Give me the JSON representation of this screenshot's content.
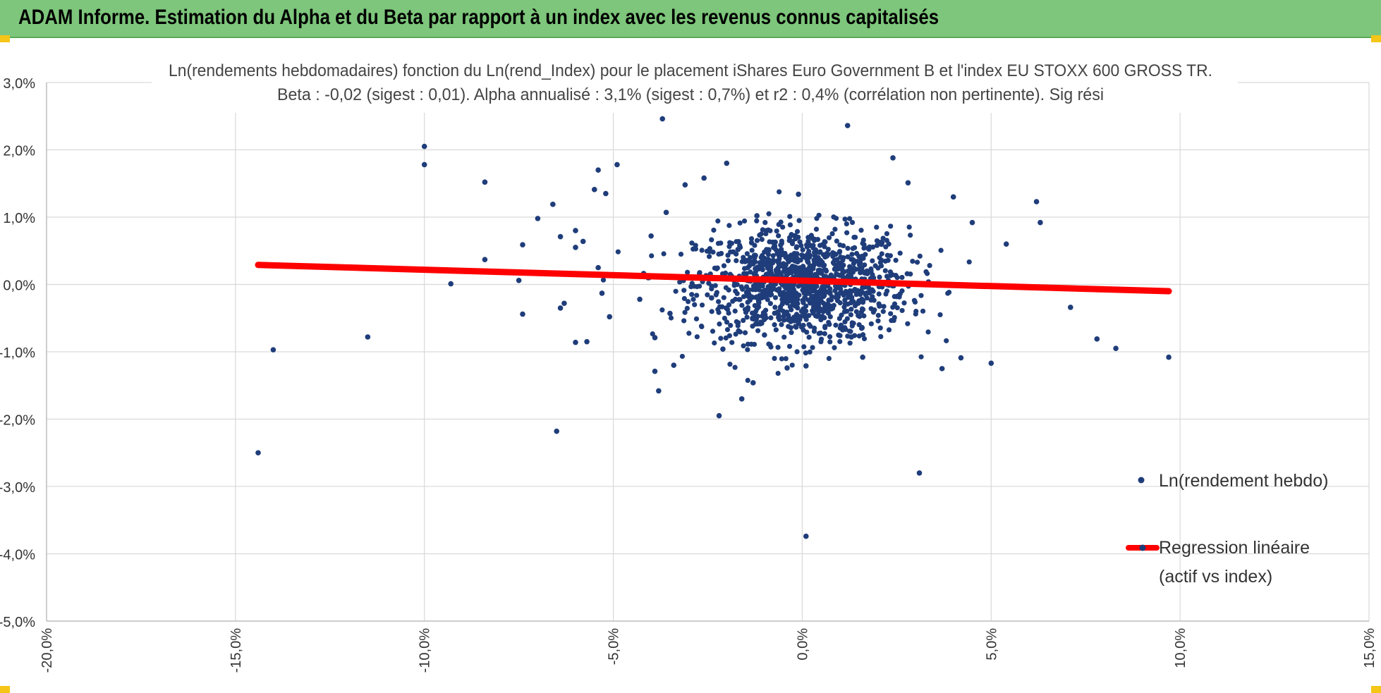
{
  "header": {
    "title": "ADAM Informe. Estimation du Alpha et du Beta par rapport à un index avec les revenus connus capitalisés"
  },
  "colors": {
    "header_bg": "#7dc67b",
    "points": "#1f3d7a",
    "regression": "#ff0000",
    "grid": "#d9d9d9",
    "corner_accent": "#f5c518"
  },
  "chart_data": {
    "type": "scatter",
    "title_line1": "Ln(rendements hebdomadaires) fonction du Ln(rend_Index) pour le placement iShares Euro Government B et l'index EU STOXX 600 GROSS TR.",
    "title_line2": "Beta : -0,02 (sigest : 0,01).  Alpha annualisé : 3,1% (sigest : 0,7%) et r2 : 0,4% (corrélation non pertinente). Sig rési",
    "xlim": [
      -0.2,
      0.15
    ],
    "ylim": [
      -0.05,
      0.03
    ],
    "x_ticks": [
      "-20,0%",
      "-15,0%",
      "-10,0%",
      "-5,0%",
      "0,0%",
      "5,0%",
      "10,0%",
      "15,0%"
    ],
    "y_ticks": [
      "3,0%",
      "2,0%",
      "1,0%",
      "0,0%",
      "-1,0%",
      "-2,0%",
      "-3,0%",
      "-4,0%",
      "-5,0%"
    ],
    "grid": true,
    "legend_position": "right",
    "series": [
      {
        "name": "Ln(rendement hebdo)",
        "kind": "scatter",
        "points": [
          [
            -0.144,
            -0.025
          ],
          [
            -0.14,
            -0.0097
          ],
          [
            -0.115,
            -0.0078
          ],
          [
            -0.1,
            0.0205
          ],
          [
            -0.1,
            0.0178
          ],
          [
            -0.093,
            0.0001
          ],
          [
            -0.084,
            0.0037
          ],
          [
            -0.084,
            0.0152
          ],
          [
            -0.075,
            0.0006
          ],
          [
            -0.074,
            0.0059
          ],
          [
            -0.074,
            -0.0044
          ],
          [
            -0.07,
            0.0098
          ],
          [
            -0.066,
            0.0119
          ],
          [
            -0.065,
            -0.0218
          ],
          [
            -0.064,
            0.0071
          ],
          [
            -0.064,
            -0.0035
          ],
          [
            -0.063,
            -0.0028
          ],
          [
            -0.06,
            0.008
          ],
          [
            -0.06,
            0.0055
          ],
          [
            -0.06,
            -0.0086
          ],
          [
            -0.058,
            0.0064
          ],
          [
            -0.057,
            -0.0085
          ],
          [
            -0.055,
            0.0141
          ],
          [
            -0.054,
            0.017
          ],
          [
            -0.054,
            0.0025
          ],
          [
            -0.053,
            -0.0013
          ],
          [
            -0.052,
            0.0135
          ],
          [
            -0.051,
            -0.0048
          ],
          [
            -0.049,
            0.0178
          ],
          [
            -0.043,
            -0.0022
          ],
          [
            -0.04,
            0.0072
          ],
          [
            -0.039,
            -0.0129
          ],
          [
            -0.039,
            -0.0079
          ],
          [
            -0.038,
            -0.0158
          ],
          [
            -0.037,
            0.0246
          ],
          [
            -0.036,
            0.0107
          ],
          [
            -0.035,
            -0.0043
          ],
          [
            -0.034,
            -0.012
          ],
          [
            -0.031,
            0.0148
          ],
          [
            -0.026,
            0.0158
          ],
          [
            -0.024,
            -0.002
          ],
          [
            -0.022,
            -0.0195
          ],
          [
            -0.021,
            -0.0096
          ],
          [
            -0.02,
            0.018
          ],
          [
            -0.017,
            0.0052
          ],
          [
            -0.016,
            -0.017
          ],
          [
            -0.013,
            -0.0146
          ],
          [
            -0.012,
            0.0102
          ],
          [
            -0.01,
            -0.0075
          ],
          [
            -0.004,
            -0.0124
          ],
          [
            -0.001,
            0.0134
          ],
          [
            0.001,
            -0.0121
          ],
          [
            0.001,
            -0.0374
          ],
          [
            0.012,
            0.0236
          ],
          [
            0.013,
            -0.0078
          ],
          [
            0.016,
            -0.0108
          ],
          [
            0.024,
            0.0188
          ],
          [
            0.028,
            0.0151
          ],
          [
            0.031,
            -0.028
          ],
          [
            0.037,
            -0.0125
          ],
          [
            0.04,
            0.013
          ],
          [
            0.042,
            -0.0109
          ],
          [
            0.045,
            0.0092
          ],
          [
            0.05,
            -0.0117
          ],
          [
            0.054,
            0.006
          ],
          [
            0.062,
            0.0123
          ],
          [
            0.063,
            0.0092
          ],
          [
            0.071,
            -0.0034
          ],
          [
            0.078,
            -0.0081
          ],
          [
            0.083,
            -0.0095
          ],
          [
            0.097,
            -0.0108
          ]
        ],
        "cloud": {
          "count": 1200,
          "x_mean": 0.0,
          "x_sd": 0.014,
          "y_mean": 0.0,
          "y_sd": 0.0042
        }
      },
      {
        "name": "Regression linéaire\n(actif vs index)",
        "kind": "line",
        "points": [
          [
            -0.144,
            0.0029
          ],
          [
            0.097,
            -0.001
          ]
        ]
      }
    ]
  }
}
